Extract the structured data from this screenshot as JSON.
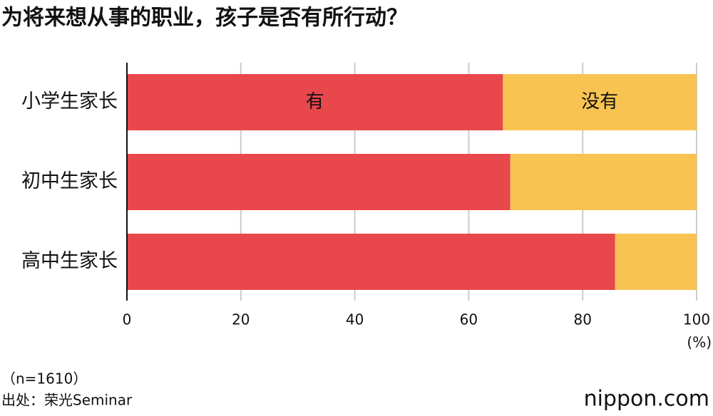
{
  "chart_data": {
    "type": "bar",
    "orientation": "horizontal",
    "stacked": true,
    "title": "为将来想从事的职业，孩子是否有所行动？",
    "categories": [
      "小学生家长",
      "初中生家长",
      "高中生家长"
    ],
    "series": [
      {
        "name": "有",
        "color": "#e8474c",
        "values": [
          66.0,
          67.3,
          85.7
        ]
      },
      {
        "name": "没有",
        "color": "#f8c350",
        "values": [
          34.0,
          32.7,
          14.3
        ]
      }
    ],
    "xlim": [
      0,
      100
    ],
    "xticks": [
      0,
      20,
      40,
      60,
      80,
      100
    ],
    "x_unit": "(%)",
    "grid": true
  },
  "notes": [
    "（n=1610）",
    "出处：荣光Seminar"
  ],
  "logo": "nippon.com"
}
